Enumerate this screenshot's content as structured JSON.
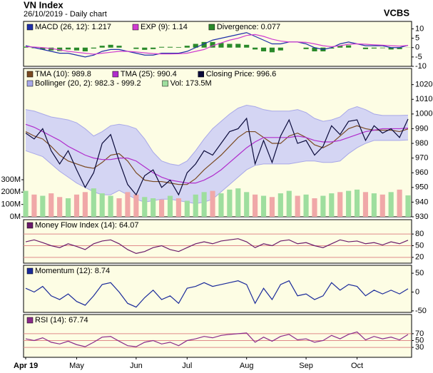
{
  "header": {
    "title": "VN Index",
    "subtitle": "26/10/2019 - Daily chart",
    "brand": "VCBS"
  },
  "chart_data": [
    {
      "type": "line",
      "ylim": [
        -10,
        14
      ],
      "yticks": [
        10,
        5,
        0,
        -5,
        -10
      ],
      "series": [
        {
          "name": "MACD (26, 12): 1.217",
          "color": "#1f2fa8",
          "style": "line",
          "values": [
            1,
            0,
            -1,
            -2,
            -3,
            -3,
            -4,
            -5,
            -4,
            -2,
            -1,
            -1,
            -2,
            -3,
            -4,
            -4,
            -3,
            -3,
            -3,
            -2,
            0,
            2,
            4,
            5,
            6,
            7,
            8,
            6,
            4,
            2,
            2,
            3,
            3,
            2,
            0,
            -1,
            0,
            2,
            3,
            2,
            1,
            1,
            1,
            0,
            0,
            1.217
          ]
        },
        {
          "name": "EXP (9): 1.14",
          "color": "#d03cd0",
          "style": "line",
          "values": [
            0.5,
            0.3,
            0,
            -0.5,
            -1.2,
            -2,
            -2.5,
            -3,
            -3.5,
            -3,
            -2.5,
            -2,
            -2,
            -2.3,
            -2.8,
            -3.2,
            -3.4,
            -3.4,
            -3.3,
            -3,
            -2,
            -1,
            1,
            2.5,
            4,
            5,
            6.5,
            7,
            6,
            4.5,
            3.5,
            3,
            3,
            2.8,
            2,
            1,
            0.5,
            1,
            1.8,
            2,
            1.8,
            1.5,
            1.3,
            1,
            0.8,
            1.14
          ]
        },
        {
          "name": "Divergence: 0.077",
          "color": "#2a8a2a",
          "style": "bar",
          "values": [
            0.5,
            -0.3,
            -1,
            -1.5,
            -1.8,
            -1,
            -1.5,
            -2,
            -0.5,
            1,
            1.5,
            1,
            0,
            -0.7,
            -1.2,
            -0.8,
            0.4,
            0.4,
            0.3,
            1,
            2,
            3,
            3,
            2.5,
            2,
            2,
            1.5,
            -1,
            -2,
            -2.5,
            -1.5,
            0,
            0,
            -0.8,
            -2,
            -2,
            -0.5,
            1,
            1.2,
            0,
            -0.8,
            -0.5,
            -0.3,
            -1,
            -0.8,
            0.077
          ]
        }
      ]
    },
    {
      "type": "line",
      "ylim": [
        930,
        1031
      ],
      "yticks": [
        930,
        940,
        950,
        960,
        970,
        980,
        990,
        1000,
        1010,
        1020
      ],
      "y2lim": [
        0,
        1200
      ],
      "y2ticks": [
        {
          "value": 0,
          "label": "0M"
        },
        {
          "value": 100,
          "label": "100M"
        },
        {
          "value": 200,
          "label": "200M"
        },
        {
          "value": 300,
          "label": "300M"
        }
      ],
      "series": [
        {
          "name": "TMA (10): 989.8",
          "color": "#7a4a22",
          "style": "line",
          "values": [
            988,
            985,
            983,
            978,
            972,
            968,
            966,
            964,
            963,
            967,
            972,
            973,
            968,
            960,
            955,
            954,
            954,
            953,
            952,
            952,
            956,
            962,
            967,
            972,
            978,
            984,
            988,
            988,
            984,
            980,
            980,
            985,
            987,
            984,
            979,
            977,
            980,
            985,
            990,
            992,
            990,
            989,
            989,
            989,
            988,
            989.8
          ]
        },
        {
          "name": "TMA (25): 990.4",
          "color": "#b02ccc",
          "style": "line",
          "values": [
            993,
            991,
            988,
            985,
            982,
            978,
            975,
            972,
            970,
            969,
            969,
            970,
            970,
            968,
            964,
            960,
            957,
            955,
            954,
            953,
            953,
            955,
            958,
            962,
            967,
            972,
            977,
            981,
            984,
            984,
            984,
            984,
            985,
            984,
            982,
            981,
            981,
            982,
            984,
            986,
            988,
            989,
            990,
            990,
            990,
            990.4
          ]
        },
        {
          "name": "Closing Price: 996.6",
          "color": "#0a0a3a",
          "style": "line",
          "values": [
            987,
            983,
            990,
            975,
            966,
            975,
            962,
            950,
            960,
            980,
            986,
            968,
            952,
            945,
            958,
            962,
            950,
            955,
            945,
            960,
            966,
            975,
            972,
            980,
            988,
            990,
            997,
            966,
            982,
            967,
            985,
            996,
            980,
            982,
            972,
            978,
            992,
            986,
            995,
            996,
            982,
            992,
            987,
            990,
            984,
            996.6
          ]
        },
        {
          "name": "Bollinger (20, 2): 982.3 - 999.2",
          "color": "#a8a8e8",
          "style": "band",
          "upper": [
            1003,
            1002,
            1000,
            998,
            997,
            996,
            994,
            990,
            985,
            988,
            992,
            993,
            992,
            990,
            983,
            974,
            968,
            966,
            965,
            968,
            975,
            983,
            990,
            995,
            1000,
            1004,
            1006,
            1005,
            1003,
            1002,
            1002,
            1002,
            1003,
            1001,
            997,
            995,
            996,
            998,
            1003,
            1005,
            1003,
            1000,
            999,
            999,
            999,
            999.2
          ],
          "lower": [
            975,
            973,
            971,
            966,
            961,
            957,
            953,
            950,
            947,
            945,
            945,
            948,
            945,
            942,
            940,
            941,
            942,
            942,
            941,
            940,
            939,
            940,
            942,
            947,
            952,
            957,
            962,
            965,
            966,
            966,
            966,
            966,
            967,
            968,
            968,
            967,
            967,
            968,
            973,
            977,
            980,
            982,
            982,
            982,
            982,
            982.3
          ]
        },
        {
          "name": "Vol: 173.5M",
          "color": "#9ede9e",
          "down_color": "#f0a8a8",
          "style": "bar",
          "axis": "y2",
          "values": [
            210,
            180,
            170,
            190,
            160,
            150,
            180,
            200,
            230,
            190,
            170,
            150,
            200,
            180,
            160,
            150,
            140,
            170,
            150,
            130,
            180,
            200,
            210,
            190,
            220,
            230,
            200,
            180,
            170,
            160,
            190,
            210,
            170,
            180,
            150,
            170,
            190,
            200,
            210,
            220,
            200,
            190,
            180,
            200,
            220,
            173.5
          ]
        }
      ]
    },
    {
      "type": "line",
      "ylim": [
        5,
        117
      ],
      "yticks": [
        20,
        50,
        80
      ],
      "grid": true,
      "grid_color": "#e08a8a",
      "series": [
        {
          "name": "Money Flow Index (14): 64.07",
          "color": "#6a1a6a",
          "style": "line",
          "values": [
            60,
            65,
            58,
            50,
            45,
            55,
            48,
            40,
            55,
            62,
            65,
            55,
            40,
            30,
            35,
            45,
            50,
            40,
            35,
            45,
            55,
            60,
            55,
            62,
            65,
            68,
            60,
            45,
            55,
            50,
            62,
            65,
            55,
            58,
            50,
            45,
            55,
            65,
            60,
            62,
            55,
            58,
            52,
            60,
            55,
            64.07
          ]
        }
      ]
    },
    {
      "type": "line",
      "ylim": [
        -54,
        71
      ],
      "yticks": [
        50,
        0,
        -50
      ],
      "series": [
        {
          "name": "Momentum (12): 8.74",
          "color": "#1a2a9a",
          "style": "line",
          "values": [
            10,
            0,
            15,
            -10,
            -20,
            -5,
            -25,
            -35,
            -10,
            20,
            25,
            0,
            -30,
            -40,
            -15,
            5,
            -20,
            -10,
            -30,
            10,
            15,
            25,
            15,
            20,
            25,
            30,
            20,
            -30,
            10,
            -20,
            20,
            30,
            -10,
            -5,
            -20,
            -10,
            25,
            5,
            20,
            15,
            -10,
            5,
            -5,
            5,
            -5,
            8.74
          ]
        }
      ]
    },
    {
      "type": "line",
      "ylim": [
        1,
        126
      ],
      "yticks": [
        30,
        50,
        70
      ],
      "grid": true,
      "grid_color": "#e08a8a",
      "categories": [
        "Apr 19",
        null,
        null,
        null,
        null,
        null,
        "May",
        null,
        null,
        null,
        null,
        null,
        null,
        "Jun",
        null,
        null,
        null,
        null,
        null,
        "Jul",
        null,
        null,
        null,
        null,
        null,
        null,
        "Aug",
        null,
        null,
        null,
        null,
        null,
        null,
        "Sep",
        null,
        null,
        null,
        null,
        null,
        "Oct",
        null,
        null,
        null,
        null,
        null,
        null
      ],
      "series": [
        {
          "name": "RSI (14): 67.74",
          "color": "#8a2a8a",
          "style": "line",
          "values": [
            55,
            50,
            58,
            45,
            40,
            48,
            38,
            32,
            45,
            60,
            62,
            48,
            35,
            32,
            45,
            50,
            40,
            45,
            35,
            50,
            55,
            62,
            58,
            65,
            68,
            70,
            72,
            45,
            60,
            48,
            62,
            68,
            52,
            55,
            45,
            50,
            65,
            55,
            68,
            75,
            52,
            62,
            55,
            60,
            52,
            67.74
          ]
        }
      ]
    }
  ]
}
